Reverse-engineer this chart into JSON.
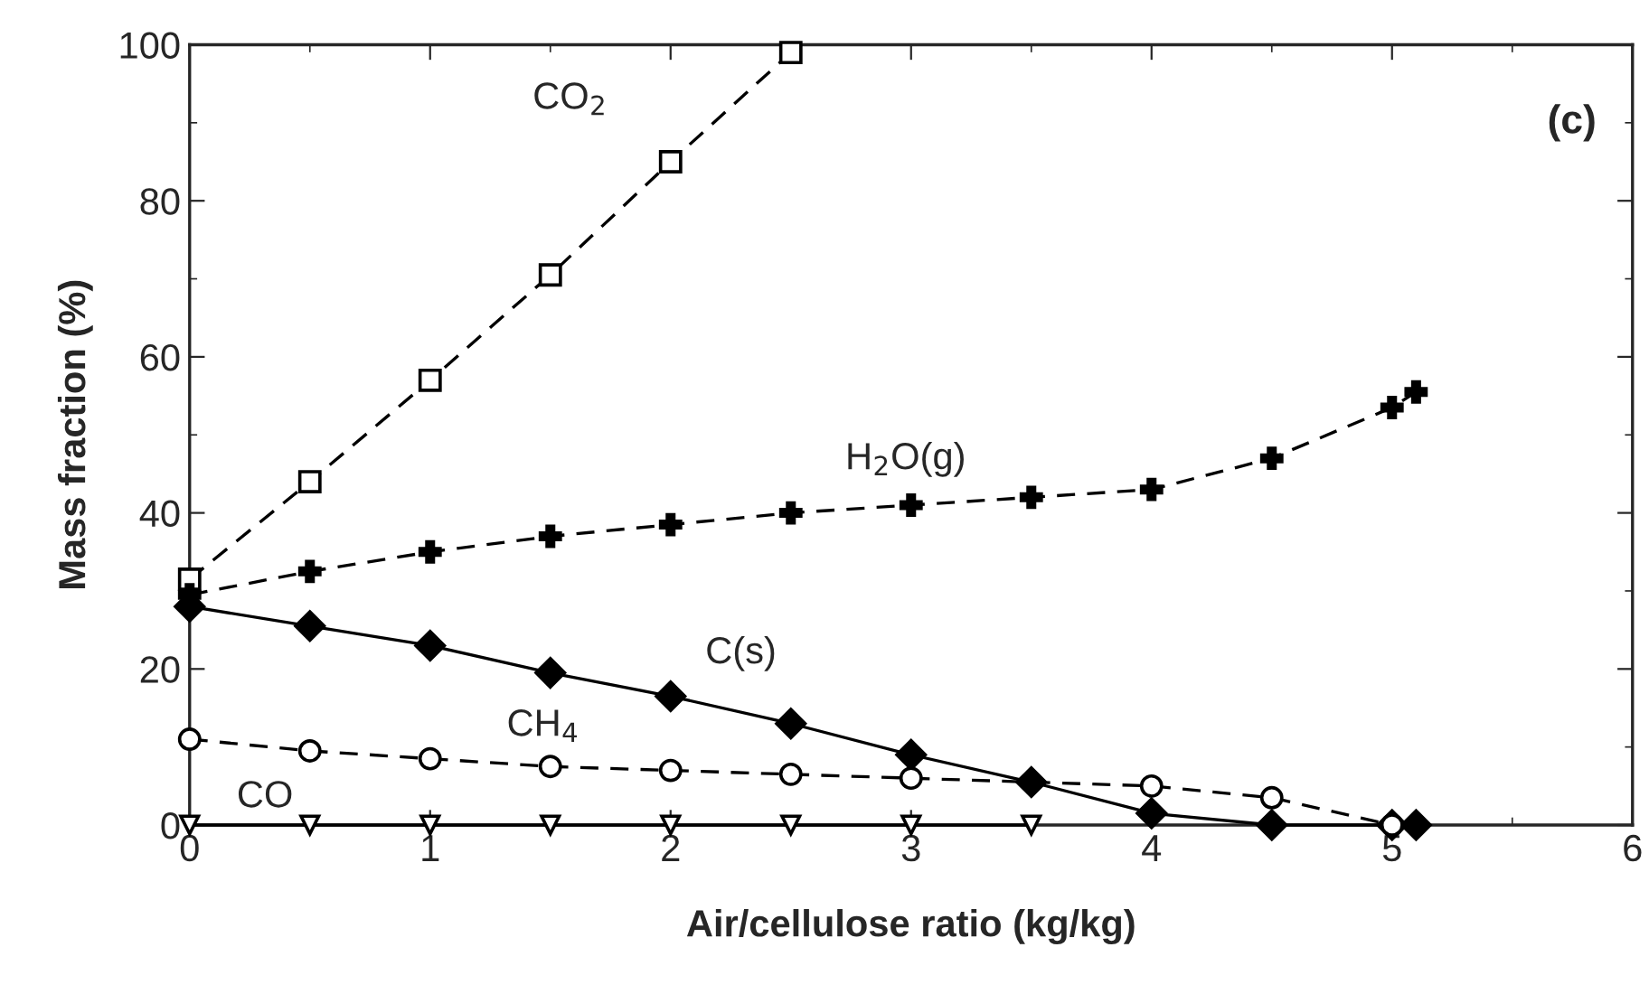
{
  "chart_data": {
    "type": "line",
    "xlabel": "Air/cellulose ratio (kg/kg)",
    "ylabel": "Mass fraction (%)",
    "xlim": [
      0,
      6
    ],
    "xticks": [
      0,
      1,
      2,
      3,
      4,
      5,
      6
    ],
    "ylim": [
      0,
      100
    ],
    "yticks": [
      0,
      20,
      40,
      60,
      80,
      100
    ],
    "grid": false,
    "legend": false,
    "series": [
      {
        "name": "CO$_{2}$",
        "color": "#000000",
        "marker": "square",
        "line_style": "dashed",
        "x": [
          0,
          0.5,
          1,
          1.5,
          2,
          2.5
        ],
        "values": [
          31.5,
          44,
          57,
          70.5,
          85,
          99
        ]
      },
      {
        "name": "H$_{2}$O(g)",
        "color": "#000000",
        "marker": "cross",
        "line_style": "dashed",
        "x": [
          0,
          0.5,
          1,
          1.5,
          2,
          2.5,
          3,
          3.5,
          4,
          4.5,
          5,
          5.1
        ],
        "values": [
          29.5,
          32.5,
          35,
          37,
          38.5,
          40,
          41,
          42,
          43,
          47,
          53.5,
          55.5
        ]
      },
      {
        "name": "C(s)",
        "color": "#000000",
        "marker": "diamond",
        "line_style": "solid",
        "x": [
          0,
          0.5,
          1,
          1.5,
          2,
          2.5,
          3,
          3.5,
          4,
          4.5,
          5,
          5.1
        ],
        "values": [
          28,
          25.5,
          23,
          19.5,
          16.5,
          13,
          9,
          5.5,
          1.5,
          0,
          0,
          0
        ]
      },
      {
        "name": "CH$_{4}$",
        "color": "#000000",
        "marker": "circle",
        "line_style": "dashed",
        "x": [
          0,
          0.5,
          1,
          1.5,
          2,
          2.5,
          3,
          4,
          4.5,
          5
        ],
        "values": [
          11,
          9.5,
          8.5,
          7.5,
          7,
          6.5,
          6,
          5,
          3.5,
          0
        ]
      },
      {
        "name": "CO",
        "color": "#000000",
        "marker": "triangle",
        "line_style": "solid",
        "x": [
          0,
          0.5,
          1,
          1.5,
          2,
          2.5,
          3,
          3.5
        ],
        "values": [
          0,
          0,
          0,
          0,
          0,
          0,
          0,
          0
        ]
      }
    ],
    "annotations": [
      "(c)"
    ]
  }
}
